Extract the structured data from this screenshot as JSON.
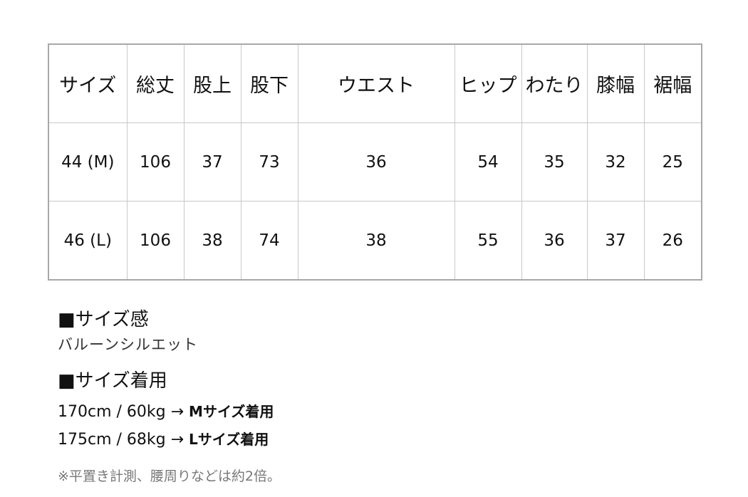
{
  "table": {
    "headers": [
      "サイズ",
      "総丈",
      "股上",
      "股下",
      "ウエスト",
      "ヒップ",
      "わたり",
      "膝幅",
      "裾幅"
    ],
    "rows": [
      [
        "44 (M)",
        "106",
        "37",
        "73",
        "36",
        "54",
        "35",
        "32",
        "25"
      ],
      [
        "46 (L)",
        "106",
        "38",
        "74",
        "38",
        "55",
        "36",
        "37",
        "26"
      ]
    ]
  },
  "fit": {
    "heading": "■サイズ感",
    "text": "バルーンシルエット"
  },
  "worn": {
    "heading": "■サイズ着用",
    "lines": [
      {
        "measure": "170cm / 60kg → ",
        "size": "Mサイズ着用"
      },
      {
        "measure": "175cm / 68kg → ",
        "size": "Lサイズ着用"
      }
    ]
  },
  "note": "※平置き計測、腰周りなどは約2倍。",
  "colors": {
    "grid": "#c8c8c8",
    "border": "#a8a8a8",
    "note": "#777777"
  }
}
